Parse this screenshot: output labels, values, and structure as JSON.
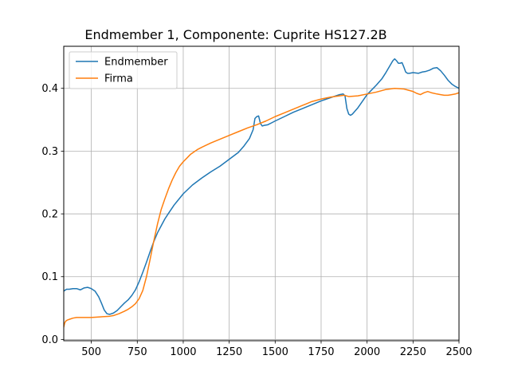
{
  "chart_data": {
    "type": "line",
    "title": "Endmember 1, Componente: Cuprite HS127.2B",
    "xlabel": "",
    "ylabel": "",
    "xlim": [
      350,
      2500
    ],
    "ylim": [
      -0.002,
      0.467
    ],
    "xticks": [
      500,
      750,
      1000,
      1250,
      1500,
      1750,
      2000,
      2250,
      2500
    ],
    "yticks": [
      0.0,
      0.1,
      0.2,
      0.3,
      0.4
    ],
    "ytick_labels": [
      "0.0",
      "0.1",
      "0.2",
      "0.3",
      "0.4"
    ],
    "grid": true,
    "legend_position": "top-left",
    "series": [
      {
        "name": "Endmember",
        "color": "#1f77b4",
        "x": [
          350,
          365,
          380,
          400,
          420,
          440,
          460,
          480,
          500,
          520,
          540,
          555,
          570,
          585,
          600,
          620,
          640,
          660,
          680,
          700,
          720,
          740,
          760,
          780,
          800,
          820,
          840,
          860,
          880,
          900,
          920,
          950,
          1000,
          1050,
          1100,
          1150,
          1200,
          1250,
          1300,
          1330,
          1360,
          1380,
          1390,
          1400,
          1410,
          1420,
          1430,
          1440,
          1460,
          1480,
          1500,
          1550,
          1600,
          1650,
          1700,
          1750,
          1800,
          1850,
          1870,
          1880,
          1890,
          1900,
          1910,
          1920,
          1950,
          2000,
          2050,
          2080,
          2100,
          2120,
          2140,
          2150,
          2160,
          2170,
          2180,
          2190,
          2200,
          2210,
          2220,
          2230,
          2250,
          2280,
          2300,
          2320,
          2340,
          2360,
          2380,
          2400,
          2420,
          2440,
          2460,
          2480,
          2500
        ],
        "values": [
          0.077,
          0.08,
          0.08,
          0.081,
          0.081,
          0.079,
          0.082,
          0.083,
          0.081,
          0.077,
          0.068,
          0.058,
          0.047,
          0.041,
          0.04,
          0.042,
          0.046,
          0.052,
          0.058,
          0.063,
          0.07,
          0.079,
          0.092,
          0.107,
          0.123,
          0.14,
          0.156,
          0.17,
          0.181,
          0.192,
          0.201,
          0.214,
          0.232,
          0.246,
          0.257,
          0.267,
          0.276,
          0.287,
          0.298,
          0.308,
          0.32,
          0.334,
          0.352,
          0.355,
          0.356,
          0.344,
          0.34,
          0.341,
          0.342,
          0.345,
          0.348,
          0.355,
          0.362,
          0.368,
          0.374,
          0.38,
          0.385,
          0.39,
          0.391,
          0.388,
          0.368,
          0.359,
          0.357,
          0.359,
          0.369,
          0.39,
          0.405,
          0.415,
          0.424,
          0.434,
          0.444,
          0.447,
          0.444,
          0.44,
          0.44,
          0.441,
          0.434,
          0.426,
          0.424,
          0.424,
          0.425,
          0.424,
          0.426,
          0.427,
          0.429,
          0.432,
          0.433,
          0.428,
          0.421,
          0.413,
          0.407,
          0.403,
          0.4
        ]
      },
      {
        "name": "Firma",
        "color": "#ff7f0e",
        "x": [
          350,
          355,
          360,
          370,
          380,
          400,
          420,
          450,
          500,
          550,
          600,
          620,
          650,
          680,
          700,
          720,
          740,
          760,
          780,
          800,
          820,
          840,
          860,
          880,
          900,
          920,
          940,
          960,
          980,
          1000,
          1020,
          1040,
          1060,
          1080,
          1100,
          1150,
          1200,
          1250,
          1300,
          1350,
          1400,
          1450,
          1500,
          1550,
          1600,
          1650,
          1700,
          1750,
          1800,
          1850,
          1875,
          1900,
          1950,
          2000,
          2050,
          2100,
          2150,
          2200,
          2250,
          2270,
          2290,
          2310,
          2330,
          2350,
          2380,
          2400,
          2420,
          2440,
          2460,
          2480,
          2500
        ],
        "values": [
          0.02,
          0.026,
          0.029,
          0.031,
          0.032,
          0.034,
          0.035,
          0.035,
          0.035,
          0.036,
          0.037,
          0.038,
          0.041,
          0.045,
          0.048,
          0.052,
          0.057,
          0.065,
          0.078,
          0.1,
          0.128,
          0.157,
          0.184,
          0.207,
          0.224,
          0.24,
          0.254,
          0.266,
          0.276,
          0.283,
          0.289,
          0.295,
          0.299,
          0.303,
          0.306,
          0.313,
          0.319,
          0.325,
          0.331,
          0.337,
          0.342,
          0.348,
          0.355,
          0.361,
          0.367,
          0.373,
          0.379,
          0.383,
          0.386,
          0.388,
          0.389,
          0.387,
          0.388,
          0.391,
          0.394,
          0.398,
          0.4,
          0.399,
          0.395,
          0.392,
          0.39,
          0.393,
          0.395,
          0.393,
          0.391,
          0.39,
          0.389,
          0.389,
          0.39,
          0.391,
          0.393
        ]
      }
    ]
  }
}
